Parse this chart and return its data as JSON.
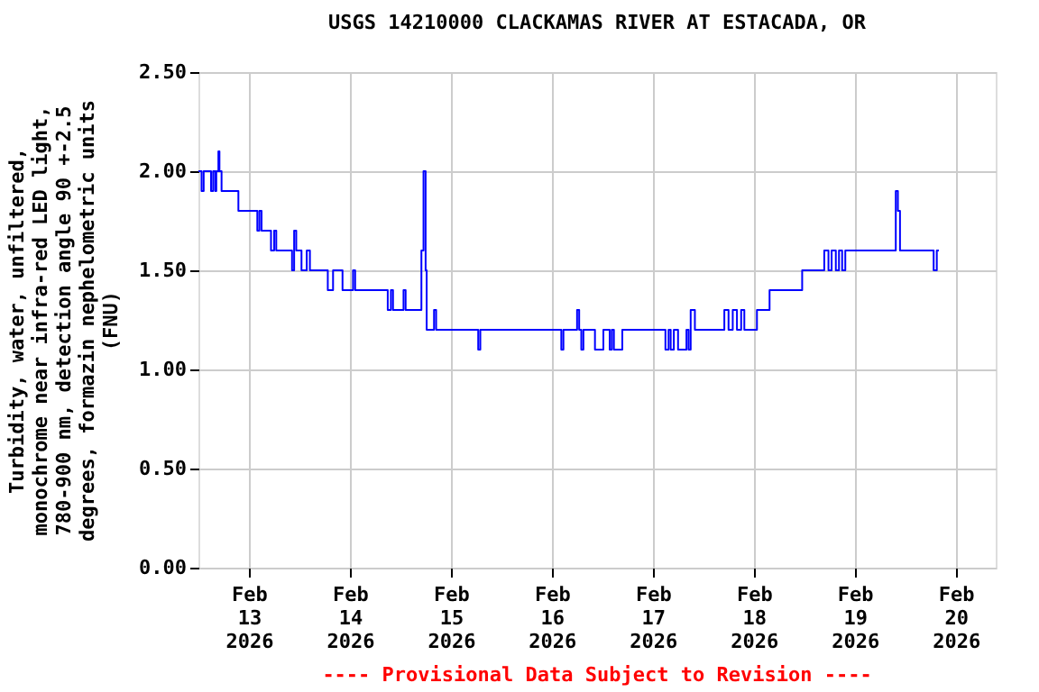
{
  "chart_data": {
    "type": "step",
    "title": "USGS 14210000 CLACKAMAS RIVER AT ESTACADA, OR",
    "ylabel": "Turbidity, water, unfiltered, monochrome near infra-red LED light, 780-900 nm, detection angle 90 +-2.5 degrees, formazin nephelometric units (FNU)",
    "annotations": [
      "---- Provisional Data Subject to Revision ----"
    ],
    "x": [
      "2026-02-12T12:00",
      "2026-02-12T12:45",
      "2026-02-12T13:15",
      "2026-02-12T15:00",
      "2026-02-12T15:30",
      "2026-02-12T16:00",
      "2026-02-12T16:15",
      "2026-02-12T16:45",
      "2026-02-12T17:00",
      "2026-02-12T17:30",
      "2026-02-12T21:30",
      "2026-02-13T02:00",
      "2026-02-13T02:30",
      "2026-02-13T03:00",
      "2026-02-13T05:15",
      "2026-02-13T06:00",
      "2026-02-13T06:30",
      "2026-02-13T10:15",
      "2026-02-13T10:45",
      "2026-02-13T11:15",
      "2026-02-13T12:30",
      "2026-02-13T13:45",
      "2026-02-13T14:30",
      "2026-02-13T18:45",
      "2026-02-13T20:00",
      "2026-02-13T22:15",
      "2026-02-14T00:45",
      "2026-02-14T01:15",
      "2026-02-14T09:00",
      "2026-02-14T09:45",
      "2026-02-14T10:15",
      "2026-02-14T12:45",
      "2026-02-14T13:15",
      "2026-02-14T17:00",
      "2026-02-14T17:30",
      "2026-02-14T18:00",
      "2026-02-14T18:15",
      "2026-02-14T20:00",
      "2026-02-14T20:30",
      "2026-02-15T06:30",
      "2026-02-15T07:00",
      "2026-02-16T02:15",
      "2026-02-16T02:45",
      "2026-02-16T06:00",
      "2026-02-16T06:30",
      "2026-02-16T07:00",
      "2026-02-16T07:30",
      "2026-02-16T10:15",
      "2026-02-16T12:15",
      "2026-02-16T13:45",
      "2026-02-16T14:15",
      "2026-02-16T14:45",
      "2026-02-16T16:45",
      "2026-02-17T03:00",
      "2026-02-17T03:45",
      "2026-02-17T04:15",
      "2026-02-17T05:00",
      "2026-02-17T06:00",
      "2026-02-17T08:00",
      "2026-02-17T08:30",
      "2026-02-17T09:00",
      "2026-02-17T10:00",
      "2026-02-17T17:00",
      "2026-02-17T18:00",
      "2026-02-17T19:00",
      "2026-02-17T20:00",
      "2026-02-17T21:00",
      "2026-02-17T21:45",
      "2026-02-18T00:45",
      "2026-02-18T01:30",
      "2026-02-18T03:45",
      "2026-02-18T11:30",
      "2026-02-18T16:45",
      "2026-02-18T17:45",
      "2026-02-18T18:30",
      "2026-02-18T19:30",
      "2026-02-18T20:15",
      "2026-02-18T21:00",
      "2026-02-18T21:45",
      "2026-02-19T09:45",
      "2026-02-19T10:15",
      "2026-02-19T10:45",
      "2026-02-19T18:45",
      "2026-02-19T19:30",
      "2026-02-19T20:00"
    ],
    "series": [
      {
        "color": "#0000ff",
        "values": [
          2.0,
          1.9,
          2.0,
          1.9,
          2.0,
          1.9,
          2.0,
          2.1,
          2.0,
          1.9,
          1.8,
          1.7,
          1.8,
          1.7,
          1.6,
          1.7,
          1.6,
          1.5,
          1.7,
          1.6,
          1.5,
          1.6,
          1.5,
          1.4,
          1.5,
          1.4,
          1.5,
          1.4,
          1.3,
          1.4,
          1.3,
          1.4,
          1.3,
          1.6,
          2.0,
          1.5,
          1.2,
          1.3,
          1.2,
          1.1,
          1.2,
          1.1,
          1.2,
          1.3,
          1.2,
          1.1,
          1.2,
          1.1,
          1.2,
          1.1,
          1.2,
          1.1,
          1.2,
          1.1,
          1.2,
          1.1,
          1.2,
          1.1,
          1.2,
          1.1,
          1.3,
          1.2,
          1.3,
          1.2,
          1.3,
          1.2,
          1.3,
          1.2,
          1.3,
          1.3,
          1.4,
          1.5,
          1.6,
          1.5,
          1.6,
          1.5,
          1.6,
          1.5,
          1.6,
          1.9,
          1.8,
          1.6,
          1.5,
          1.6,
          1.6
        ]
      }
    ],
    "xlim": [
      "2026-02-12T12:00",
      "2026-02-20T09:30"
    ],
    "xticks": [
      {
        "value": "2026-02-13",
        "label": "Feb 13 2026"
      },
      {
        "value": "2026-02-14",
        "label": "Feb 14 2026"
      },
      {
        "value": "2026-02-15",
        "label": "Feb 15 2026"
      },
      {
        "value": "2026-02-16",
        "label": "Feb 16 2026"
      },
      {
        "value": "2026-02-17",
        "label": "Feb 17 2026"
      },
      {
        "value": "2026-02-18",
        "label": "Feb 18 2026"
      },
      {
        "value": "2026-02-19",
        "label": "Feb 19 2026"
      },
      {
        "value": "2026-02-20",
        "label": "Feb 20 2026"
      }
    ],
    "ylim": [
      0,
      2.5
    ],
    "yticks": [
      {
        "value": 0,
        "label": "0.00"
      },
      {
        "value": 0.5,
        "label": "0.50"
      },
      {
        "value": 1,
        "label": "1.00"
      },
      {
        "value": 1.5,
        "label": "1.50"
      },
      {
        "value": 2,
        "label": "2.00"
      },
      {
        "value": 2.5,
        "label": "2.50"
      }
    ],
    "grid": true,
    "marker": "none",
    "line_style": "solid"
  }
}
